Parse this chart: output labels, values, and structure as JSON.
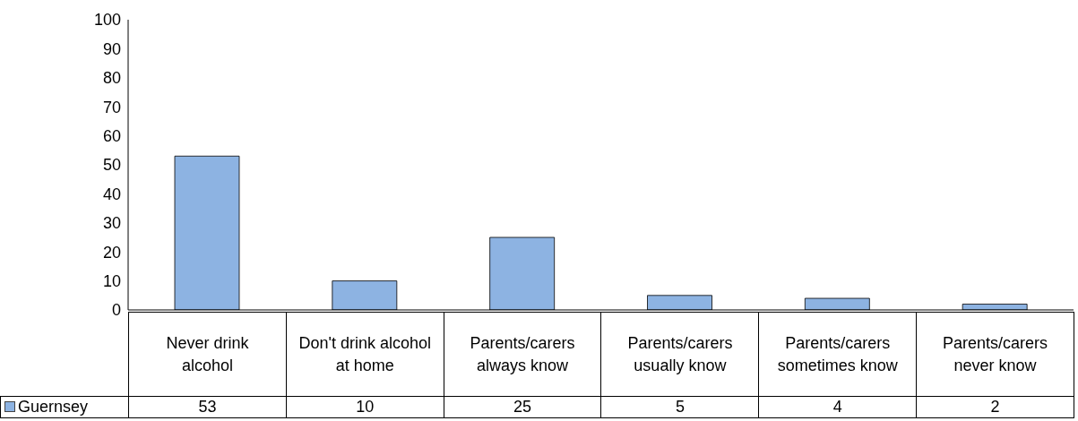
{
  "chart_data": {
    "type": "bar",
    "categories": [
      "Never drink alcohol",
      "Don't drink alcohol at home",
      "Parents/carers always know",
      "Parents/carers usually know",
      "Parents/carers sometimes know",
      "Parents/carers never know"
    ],
    "series": [
      {
        "name": "Guernsey",
        "color": "#8db3e2",
        "values": [
          53,
          10,
          25,
          5,
          4,
          2
        ]
      }
    ],
    "ylim": [
      0,
      100
    ],
    "yticks": [
      0,
      10,
      20,
      30,
      40,
      50,
      60,
      70,
      80,
      90,
      100
    ],
    "grid": false,
    "legend": "bottom",
    "data_labels": true
  }
}
